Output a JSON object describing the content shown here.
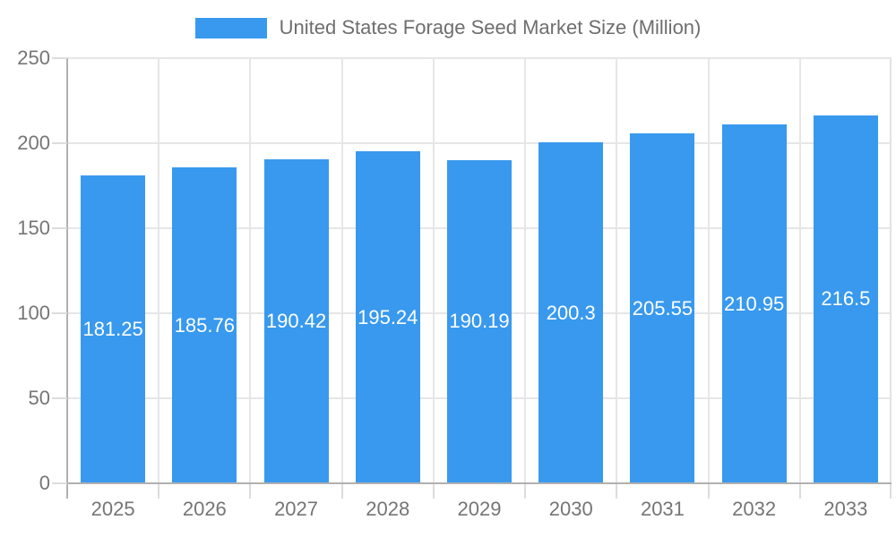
{
  "legend": {
    "title": "United States Forage Seed Market Size (Million)"
  },
  "chart_data": {
    "type": "bar",
    "title": "United States Forage Seed Market Size (Million)",
    "categories": [
      "2025",
      "2026",
      "2027",
      "2028",
      "2029",
      "2030",
      "2031",
      "2032",
      "2033"
    ],
    "values": [
      181.25,
      185.76,
      190.42,
      195.24,
      190.19,
      200.3,
      205.55,
      210.95,
      216.5
    ],
    "series": [
      {
        "name": "United States Forage Seed Market Size (Million)",
        "values": [
          181.25,
          185.76,
          190.42,
          195.24,
          190.19,
          200.3,
          205.55,
          210.95,
          216.5
        ]
      }
    ],
    "xlabel": "",
    "ylabel": "",
    "ylim": [
      0,
      250
    ],
    "yticks": [
      0,
      50,
      100,
      150,
      200,
      250
    ],
    "grid": true,
    "legend_position": "top-center",
    "value_labels_shown": true,
    "colors": {
      "bar": "#3899ee",
      "value_label": "#ffffff",
      "axis_label": "#757575",
      "legend_text": "#6e6e6e",
      "gridline": "#e6e6e6",
      "axis_line": "#b0b0b0",
      "background": "#ffffff"
    }
  }
}
